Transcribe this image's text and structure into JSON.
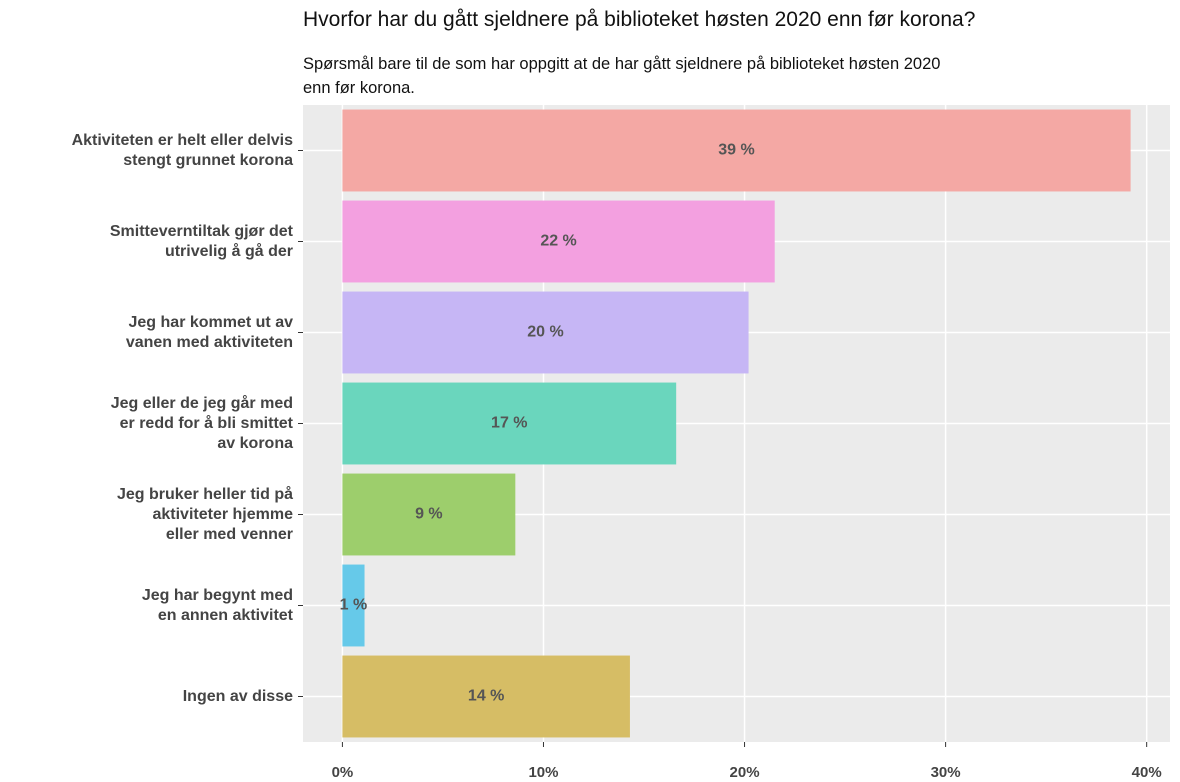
{
  "chart_data": {
    "type": "bar",
    "orientation": "horizontal",
    "title": "Hvorfor har du gått sjeldnere på biblioteket høsten 2020 enn før korona?",
    "subtitle": "Spørsmål bare til de som har oppgitt at de har gått sjeldnere på biblioteket høsten 2020\nenn før korona.",
    "categories": [
      "Aktiviteten er helt eller delvis\nstengt grunnet korona",
      "Smitteverntiltak gjør det\nutrivelig å gå der",
      "Jeg har kommet ut av\nvanen med aktiviteten",
      "Jeg eller de jeg går med\ner redd for å bli smittet\nav korona",
      "Jeg bruker heller tid på\naktiviteter hjemme\neller med venner",
      "Jeg har begynt med\nen annen aktivitet",
      "Ingen av disse"
    ],
    "values": [
      39.2,
      21.5,
      20.2,
      16.6,
      8.6,
      1.1,
      14.3
    ],
    "value_labels": [
      "39 %",
      "22 %",
      "20 %",
      "17 %",
      "9 %",
      "1 %",
      "14 %"
    ],
    "colors": [
      "#f4a8a4",
      "#f3a0e0",
      "#c6b6f5",
      "#6ad6bd",
      "#9dce6c",
      "#66c9e9",
      "#d6bd65"
    ],
    "xlim": [
      -1.96,
      41.16
    ],
    "xticks": [
      {
        "value": 0,
        "label": "0%"
      },
      {
        "value": 10,
        "label": "10%"
      },
      {
        "value": 20,
        "label": "20%"
      },
      {
        "value": 30,
        "label": "30%"
      },
      {
        "value": 40,
        "label": "40%"
      }
    ],
    "grid": true
  }
}
